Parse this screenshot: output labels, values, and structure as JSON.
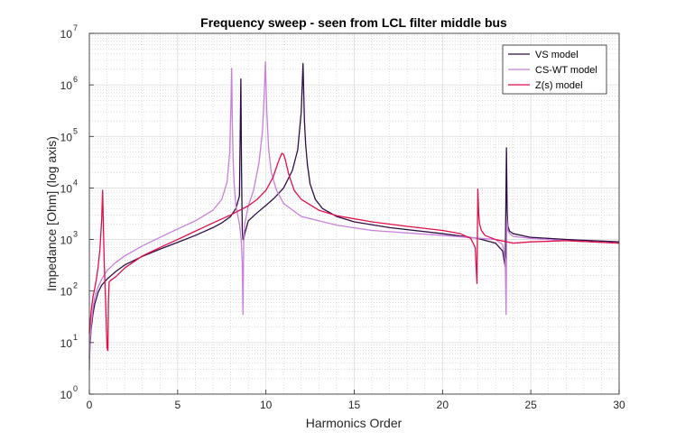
{
  "chart_data": {
    "type": "line",
    "title": "Frequency sweep - seen from LCL filter middle bus",
    "xlabel": "Harmonics Order",
    "ylabel": "Impedance [Ohm] (log axis)",
    "xlim": [
      0,
      30
    ],
    "ylim": [
      1,
      10000000
    ],
    "yscale": "log",
    "grid": true,
    "minor_grid": true,
    "legend_position": "top-right",
    "x_ticks": [
      0,
      5,
      10,
      15,
      20,
      25,
      30
    ],
    "y_ticks": [
      {
        "base": "10",
        "exp": "0",
        "value": 1
      },
      {
        "base": "10",
        "exp": "1",
        "value": 10
      },
      {
        "base": "10",
        "exp": "2",
        "value": 100
      },
      {
        "base": "10",
        "exp": "3",
        "value": 1000
      },
      {
        "base": "10",
        "exp": "4",
        "value": 10000
      },
      {
        "base": "10",
        "exp": "5",
        "value": 100000
      },
      {
        "base": "10",
        "exp": "6",
        "value": 1000000
      },
      {
        "base": "10",
        "exp": "7",
        "value": 10000000
      }
    ],
    "series": [
      {
        "name": "VS model",
        "color": "#2e0f45",
        "x": [
          0.0,
          0.05,
          0.1,
          0.2,
          0.3,
          0.5,
          0.7,
          1.0,
          1.5,
          2.0,
          3.0,
          4.0,
          5.0,
          6.0,
          7.0,
          7.5,
          8.0,
          8.3,
          8.5,
          8.58,
          8.62,
          8.66,
          8.7,
          8.74,
          8.8,
          9.0,
          9.5,
          10.0,
          10.5,
          11.0,
          11.5,
          11.8,
          12.0,
          12.1,
          12.18,
          12.25,
          12.35,
          12.5,
          12.8,
          13.2,
          14.0,
          15.0,
          17.0,
          20.0,
          22.0,
          23.0,
          23.4,
          23.55,
          23.62,
          23.66,
          23.7,
          23.8,
          24.0,
          25.0,
          27.0,
          30.0
        ],
        "values": [
          5,
          10,
          18,
          35,
          55,
          95,
          130,
          170,
          240,
          320,
          470,
          650,
          880,
          1200,
          1700,
          2100,
          2800,
          4000,
          7000,
          1300000,
          20000,
          1500,
          1000,
          1000,
          1300,
          2300,
          3300,
          4600,
          6500,
          10000,
          22000,
          55000,
          300000,
          2600000,
          200000,
          70000,
          28000,
          12000,
          6000,
          4000,
          2800,
          2200,
          1700,
          1300,
          1050,
          850,
          600,
          300,
          60000,
          3500,
          1800,
          1450,
          1300,
          1100,
          1000,
          900
        ]
      },
      {
        "name": "CS-WT model",
        "color": "#c97fdb",
        "x": [
          0.0,
          0.05,
          0.1,
          0.2,
          0.3,
          0.5,
          0.7,
          1.0,
          1.5,
          2.0,
          3.0,
          4.0,
          5.0,
          6.0,
          7.0,
          7.5,
          7.8,
          7.95,
          8.02,
          8.06,
          8.1,
          8.15,
          8.2,
          8.3,
          8.5,
          8.6,
          8.66,
          8.7,
          8.74,
          8.8,
          9.0,
          9.3,
          9.6,
          9.8,
          9.9,
          9.97,
          10.05,
          10.15,
          10.3,
          10.6,
          11.0,
          12.0,
          14.0,
          16.0,
          20.0,
          23.0,
          23.4,
          23.55,
          23.6,
          23.64,
          23.7,
          23.8,
          24.0,
          25.0,
          27.0,
          30.0
        ],
        "values": [
          3,
          12,
          22,
          45,
          75,
          120,
          170,
          250,
          360,
          480,
          750,
          1100,
          1600,
          2300,
          3700,
          6000,
          13000,
          50000,
          400000,
          2100000,
          150000,
          30000,
          12000,
          4500,
          2000,
          1000,
          350,
          35,
          900,
          2000,
          4500,
          9000,
          30000,
          120000,
          600000,
          2800000,
          300000,
          60000,
          20000,
          9000,
          5000,
          2800,
          1900,
          1500,
          1200,
          1000,
          800,
          400,
          35,
          2500,
          1500,
          1300,
          1150,
          1050,
          950,
          850
        ]
      },
      {
        "name": "Z(s) model",
        "color": "#e00f4a",
        "x": [
          0.0,
          0.05,
          0.1,
          0.2,
          0.3,
          0.4,
          0.5,
          0.6,
          0.7,
          0.75,
          0.8,
          0.85,
          0.9,
          0.95,
          1.0,
          1.05,
          1.08,
          1.12,
          1.2,
          1.3,
          1.5,
          2.0,
          3.0,
          4.0,
          5.0,
          6.0,
          7.0,
          8.0,
          9.0,
          9.5,
          10.0,
          10.4,
          10.7,
          10.9,
          11.0,
          11.1,
          11.3,
          11.6,
          12.0,
          13.0,
          14.0,
          16.0,
          18.0,
          20.0,
          21.0,
          21.6,
          21.85,
          21.95,
          22.0,
          22.05,
          22.1,
          22.2,
          22.4,
          23.0,
          24.0,
          25.0,
          27.0,
          30.0
        ],
        "values": [
          15,
          25,
          40,
          75,
          110,
          170,
          300,
          650,
          2500,
          9000,
          1500,
          300,
          100,
          30,
          8,
          7,
          60,
          150,
          160,
          170,
          190,
          280,
          480,
          700,
          1000,
          1450,
          2100,
          3000,
          4500,
          6000,
          9000,
          16000,
          32000,
          47000,
          45000,
          35000,
          18000,
          9000,
          6000,
          3700,
          2900,
          2200,
          1800,
          1500,
          1300,
          1050,
          700,
          140,
          9500,
          3000,
          2000,
          1500,
          1200,
          1000,
          850,
          900,
          950,
          850
        ]
      }
    ]
  }
}
